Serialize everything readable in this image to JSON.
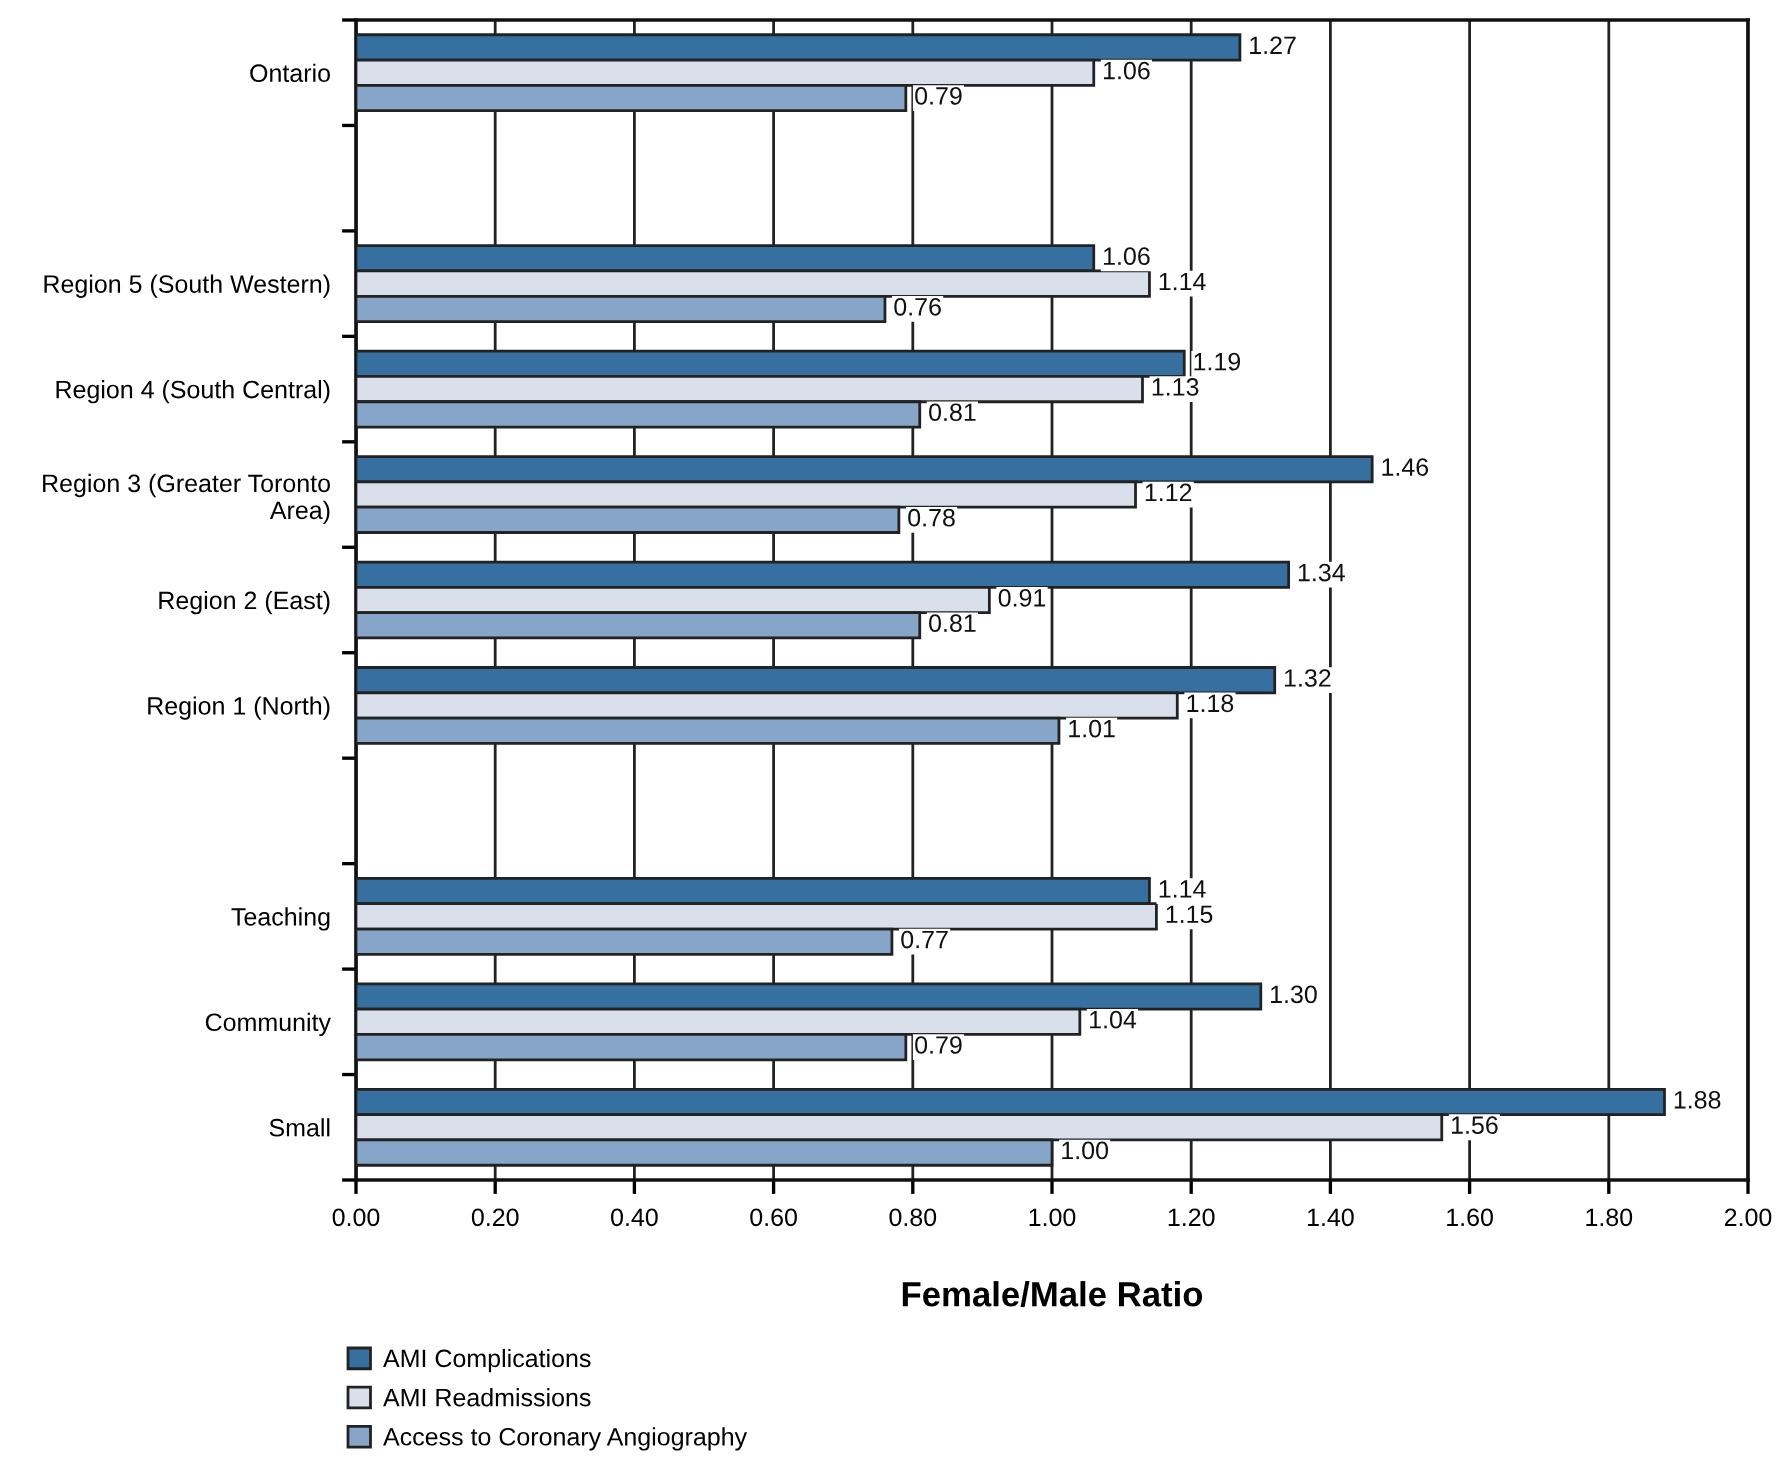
{
  "chart_data": {
    "type": "bar",
    "orientation": "horizontal",
    "categories": [
      "Ontario",
      null,
      "Region 5 (South Western)",
      "Region 4 (South Central)",
      "Region 3 (Greater Toronto\nArea)",
      "Region 2 (East)",
      "Region 1 (North)",
      null,
      "Teaching",
      "Community",
      "Small"
    ],
    "series": [
      {
        "name": "AMI Complications",
        "color": "#3570a0",
        "values": [
          1.27,
          null,
          1.06,
          1.19,
          1.46,
          1.34,
          1.32,
          null,
          1.14,
          1.3,
          1.88
        ],
        "value_labels": [
          "1.27",
          null,
          "1.06",
          "1.19",
          "1.46",
          "1.34",
          "1.32",
          null,
          "1.14",
          "1.30",
          "1.88"
        ]
      },
      {
        "name": "AMI Readmissions",
        "color": "#d9e0ec",
        "values": [
          1.06,
          null,
          1.14,
          1.13,
          1.12,
          0.91,
          1.18,
          null,
          1.15,
          1.04,
          1.56
        ],
        "value_labels": [
          "1.06",
          null,
          "1.14",
          "1.13",
          "1.12",
          "0.91",
          "1.18",
          null,
          "1.15",
          "1.04",
          "1.56"
        ]
      },
      {
        "name": "Access to Coronary Angiography",
        "color": "#87a5c8",
        "values": [
          0.79,
          null,
          0.76,
          0.81,
          0.78,
          0.81,
          1.01,
          null,
          0.77,
          0.79,
          1.0
        ],
        "value_labels": [
          "0.79",
          null,
          "0.76",
          "0.81",
          "0.78",
          "0.81",
          "1.01",
          null,
          "0.77",
          "0.79",
          "1.00"
        ]
      }
    ],
    "xlabel": "Female/Male Ratio",
    "xlim": [
      0,
      2
    ],
    "xticks": [
      {
        "value": 0,
        "label": "0.00"
      },
      {
        "value": 0.2,
        "label": "0.20"
      },
      {
        "value": 0.4,
        "label": "0.40"
      },
      {
        "value": 0.6,
        "label": "0.60"
      },
      {
        "value": 0.8,
        "label": "0.80"
      },
      {
        "value": 1,
        "label": "1.00"
      },
      {
        "value": 1.2,
        "label": "1.20"
      },
      {
        "value": 1.4,
        "label": "1.40"
      },
      {
        "value": 1.6,
        "label": "1.60"
      },
      {
        "value": 1.8,
        "label": "1.80"
      },
      {
        "value": 2,
        "label": "2.00"
      }
    ],
    "grid": "x",
    "legend": "bottom left"
  }
}
